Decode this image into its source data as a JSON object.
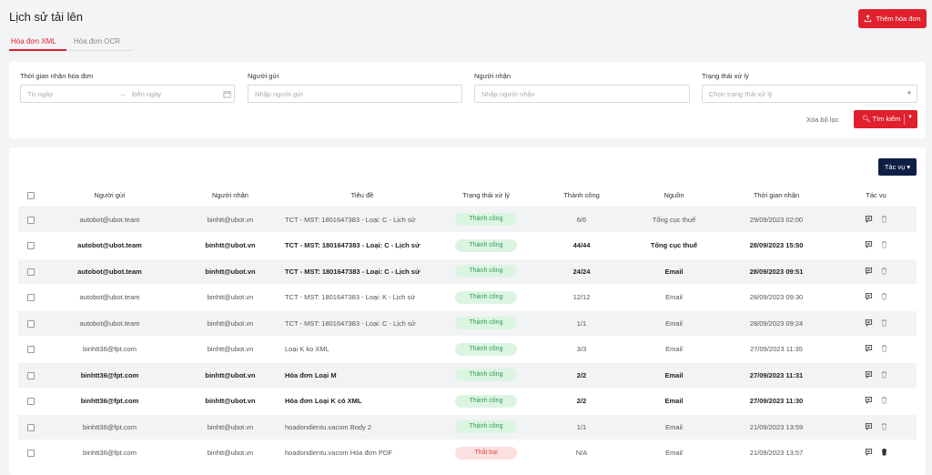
{
  "header": {
    "title": "Lịch sử tải lên",
    "add_button": "Thêm hóa đơn",
    "tabs": [
      "Hóa đơn XML",
      "Hóa đơn OCR"
    ]
  },
  "filters": {
    "time_label": "Thời gian nhận hóa đơn",
    "from_placeholder": "Từ ngày",
    "to_placeholder": "Đến ngày",
    "sender_label": "Người gửi",
    "sender_placeholder": "Nhập người gửi",
    "receiver_label": "Người nhận",
    "receiver_placeholder": "Nhập người nhận",
    "status_label": "Trạng thái xử lý",
    "status_placeholder": "Chọn trạng thái xử lý",
    "clear_label": "Xóa bộ lọc",
    "search_label": "Tìm kiếm"
  },
  "table": {
    "actions_button": "Tác vụ",
    "columns": [
      "Người gửi",
      "Người nhận",
      "Tiêu đề",
      "Trạng thái xử lý",
      "Thành công",
      "Nguồn",
      "Thời gian nhận",
      "Tác vụ"
    ],
    "rows": [
      {
        "sender": "autobot@ubot.team",
        "receiver": "binhtt@ubot.vn",
        "subject": "TCT - MST: 1801647383 - Loại: C - Lịch sử",
        "status": "Thành công",
        "status_type": "ok",
        "success": "6/6",
        "source": "Tổng cục thuế",
        "time": "29/09/2023 02:00",
        "bold": false
      },
      {
        "sender": "autobot@ubot.team",
        "receiver": "binhtt@ubot.vn",
        "subject": "TCT - MST: 1801647383 - Loại: C - Lịch sử",
        "status": "Thành công",
        "status_type": "ok",
        "success": "44/44",
        "source": "Tổng cục thuế",
        "time": "28/09/2023 15:50",
        "bold": true
      },
      {
        "sender": "autobot@ubot.team",
        "receiver": "binhtt@ubot.vn",
        "subject": "TCT - MST: 1801647383 - Loại: C - Lịch sử",
        "status": "Thành công",
        "status_type": "ok",
        "success": "24/24",
        "source": "Email",
        "time": "28/09/2023 09:51",
        "bold": true
      },
      {
        "sender": "autobot@ubot.team",
        "receiver": "binhtt@ubot.vn",
        "subject": "TCT - MST: 1801647383 - Loại: K - Lịch sử",
        "status": "Thành công",
        "status_type": "ok",
        "success": "12/12",
        "source": "Email",
        "time": "28/09/2023 09:30",
        "bold": false
      },
      {
        "sender": "autobot@ubot.team",
        "receiver": "binhtt@ubot.vn",
        "subject": "TCT - MST: 1801647383 - Loại: C - Lịch sử",
        "status": "Thành công",
        "status_type": "ok",
        "success": "1/1",
        "source": "Email",
        "time": "28/09/2023 09:24",
        "bold": false
      },
      {
        "sender": "binhtt36@fpt.com",
        "receiver": "binhtt@ubot.vn",
        "subject": "Loại K ko XML",
        "status": "Thành công",
        "status_type": "ok",
        "success": "3/3",
        "source": "Email",
        "time": "27/09/2023 11:35",
        "bold": false
      },
      {
        "sender": "binhtt36@fpt.com",
        "receiver": "binhtt@ubot.vn",
        "subject": "Hóa đơn Loại M",
        "status": "Thành công",
        "status_type": "ok",
        "success": "2/2",
        "source": "Email",
        "time": "27/09/2023 11:31",
        "bold": true
      },
      {
        "sender": "binhtt36@fpt.com",
        "receiver": "binhtt@ubot.vn",
        "subject": "Hóa đơn Loại K có XML",
        "status": "Thành công",
        "status_type": "ok",
        "success": "2/2",
        "source": "Email",
        "time": "27/09/2023 11:30",
        "bold": true
      },
      {
        "sender": "binhtt36@fpt.com",
        "receiver": "binhtt@ubot.vn",
        "subject": "hoadondientu.vacom Body 2",
        "status": "Thành công",
        "status_type": "ok",
        "success": "1/1",
        "source": "Email",
        "time": "21/09/2023 13:59",
        "bold": false
      },
      {
        "sender": "binhtt36@fpt.com",
        "receiver": "binhtt@ubot.vn",
        "subject": "hoadondientu.vacom Hóa đơn PDF",
        "status": "Thất bại",
        "status_type": "fail",
        "success": "N/A",
        "source": "Email",
        "time": "21/09/2023 13:57",
        "bold": false
      }
    ]
  },
  "colors": {
    "accent": "#e0202d",
    "navy": "#0e1f47",
    "ok_bg": "#dcf5e3",
    "fail_bg": "#fde0e0"
  }
}
